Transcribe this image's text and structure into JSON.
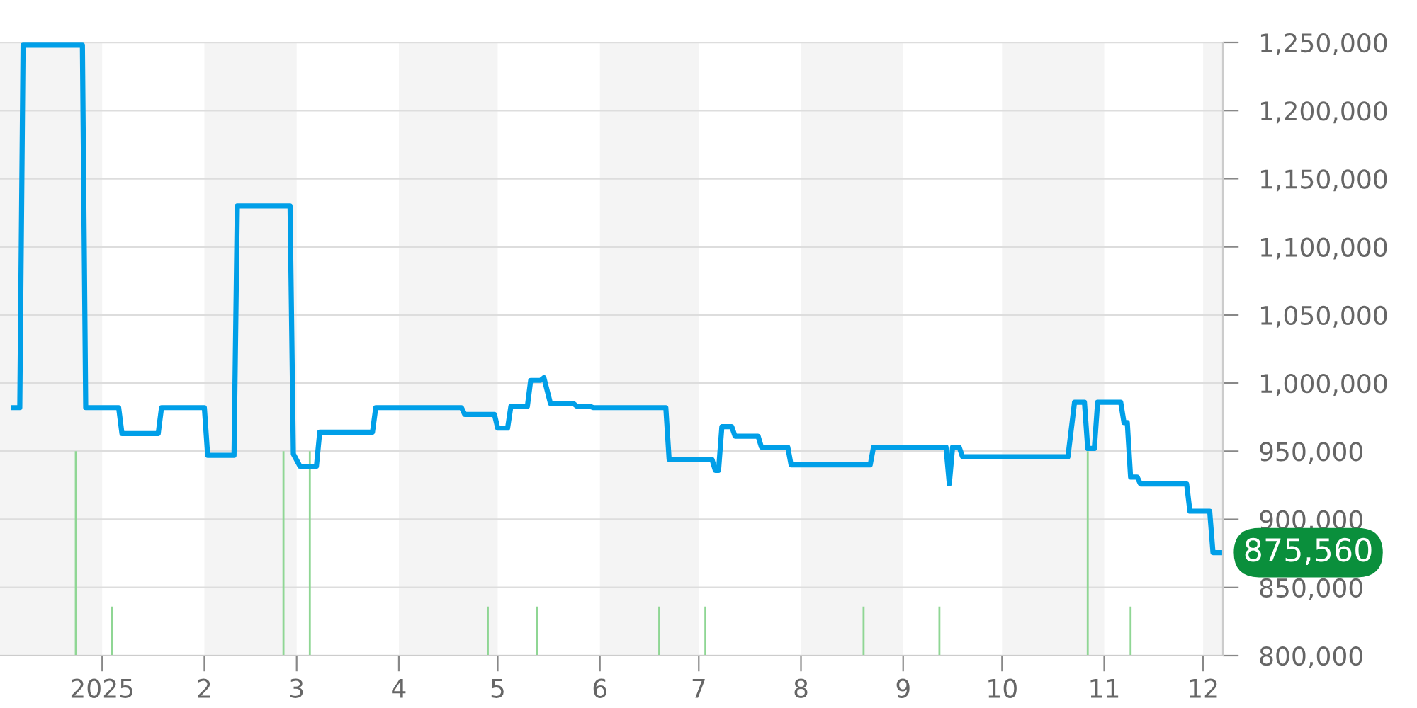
{
  "chart_data": {
    "type": "line",
    "series": [
      {
        "color": "#009fe8",
        "x": [
          "2024-12-05",
          "2024-12-07",
          "2024-12-08",
          "2024-12-26",
          "2024-12-27",
          "2025-01-06",
          "2025-01-07",
          "2025-01-18",
          "2025-01-19",
          "2025-02-01",
          "2025-02-02",
          "2025-02-10",
          "2025-02-11",
          "2025-02-27",
          "2025-02-28",
          "2025-03-02",
          "2025-03-07",
          "2025-03-08",
          "2025-03-24",
          "2025-03-25",
          "2025-04-20",
          "2025-04-21",
          "2025-04-30",
          "2025-05-01",
          "2025-05-04",
          "2025-05-05",
          "2025-05-10",
          "2025-05-11",
          "2025-05-14",
          "2025-05-15",
          "2025-05-17",
          "2025-05-24",
          "2025-05-25",
          "2025-05-29",
          "2025-05-30",
          "2025-06-21",
          "2025-06-22",
          "2025-07-05",
          "2025-07-06",
          "2025-07-07",
          "2025-07-08",
          "2025-07-11",
          "2025-07-12",
          "2025-07-19",
          "2025-07-20",
          "2025-07-28",
          "2025-07-29",
          "2025-08-22",
          "2025-08-23",
          "2025-09-14",
          "2025-09-15",
          "2025-09-16",
          "2025-09-18",
          "2025-09-19",
          "2025-10-21",
          "2025-10-23",
          "2025-10-26",
          "2025-10-27",
          "2025-10-29",
          "2025-10-30",
          "2025-11-06",
          "2025-11-07",
          "2025-11-08",
          "2025-11-09",
          "2025-11-11",
          "2025-11-12",
          "2025-11-26",
          "2025-11-27",
          "2025-12-03",
          "2025-12-04",
          "2025-12-06"
        ],
        "values": [
          982000,
          982000,
          1248000,
          1248000,
          982000,
          982000,
          963000,
          963000,
          982000,
          982000,
          947000,
          947000,
          1130000,
          1130000,
          948000,
          939000,
          939000,
          964000,
          964000,
          982000,
          982000,
          977000,
          977000,
          967000,
          967000,
          983000,
          983000,
          1002000,
          1002000,
          1004000,
          985000,
          985000,
          983000,
          983000,
          982000,
          982000,
          944000,
          944000,
          936000,
          936000,
          968000,
          968000,
          961000,
          961000,
          953000,
          953000,
          940000,
          940000,
          953000,
          953000,
          926000,
          953000,
          953000,
          946000,
          946000,
          986000,
          986000,
          952000,
          952000,
          986000,
          986000,
          971000,
          971000,
          931000,
          931000,
          926000,
          926000,
          906000,
          906000,
          875560,
          875560
        ]
      },
      {
        "type": "bar",
        "color": "#8fd694",
        "x": [
          "2024-12-24",
          "2025-01-04",
          "2025-02-25",
          "2025-03-05",
          "2025-04-28",
          "2025-05-13",
          "2025-06-19",
          "2025-07-03",
          "2025-08-20",
          "2025-09-12",
          "2025-10-27",
          "2025-11-09"
        ],
        "values": [
          950000,
          836000,
          950000,
          950000,
          836000,
          836000,
          836000,
          836000,
          836000,
          836000,
          950000,
          836000
        ]
      }
    ],
    "xlim": [
      "2024-12-01",
      "2025-12-07"
    ],
    "xticks": [
      {
        "value": "2025-01-01",
        "label": "2025"
      },
      {
        "value": "2025-02-01",
        "label": "2"
      },
      {
        "value": "2025-03-01",
        "label": "3"
      },
      {
        "value": "2025-04-01",
        "label": "4"
      },
      {
        "value": "2025-05-01",
        "label": "5"
      },
      {
        "value": "2025-06-01",
        "label": "6"
      },
      {
        "value": "2025-07-01",
        "label": "7"
      },
      {
        "value": "2025-08-01",
        "label": "8"
      },
      {
        "value": "2025-09-01",
        "label": "9"
      },
      {
        "value": "2025-10-01",
        "label": "10"
      },
      {
        "value": "2025-11-01",
        "label": "11"
      },
      {
        "value": "2025-12-01",
        "label": "12"
      }
    ],
    "ylim": [
      800000,
      1250000
    ],
    "yticks": [
      {
        "value": 800000,
        "label": "800,000"
      },
      {
        "value": 850000,
        "label": "850,000"
      },
      {
        "value": 900000,
        "label": "900,000"
      },
      {
        "value": 950000,
        "label": "950,000"
      },
      {
        "value": 1000000,
        "label": "1,000,000"
      },
      {
        "value": 1050000,
        "label": "1,050,000"
      },
      {
        "value": 1100000,
        "label": "1,100,000"
      },
      {
        "value": 1150000,
        "label": "1,150,000"
      },
      {
        "value": 1200000,
        "label": "1,200,000"
      },
      {
        "value": 1250000,
        "label": "1,250,000"
      }
    ],
    "bands": [
      {
        "axis": "x",
        "from": "2024-12-01",
        "to": "2025-01-01",
        "color": "#f4f4f4"
      },
      {
        "axis": "x",
        "from": "2025-02-01",
        "to": "2025-03-01",
        "color": "#f4f4f4"
      },
      {
        "axis": "x",
        "from": "2025-04-01",
        "to": "2025-05-01",
        "color": "#f4f4f4"
      },
      {
        "axis": "x",
        "from": "2025-06-01",
        "to": "2025-07-01",
        "color": "#f4f4f4"
      },
      {
        "axis": "x",
        "from": "2025-08-01",
        "to": "2025-09-01",
        "color": "#f4f4f4"
      },
      {
        "axis": "x",
        "from": "2025-10-01",
        "to": "2025-11-01",
        "color": "#f4f4f4"
      },
      {
        "axis": "x",
        "from": "2025-12-01",
        "to": "2025-12-07",
        "color": "#f4f4f4"
      }
    ],
    "annotations": [
      {
        "text": "875,560",
        "x": "2025-12-06",
        "y": 875560
      }
    ],
    "grid": "y",
    "marker": "none",
    "line_style": "solid"
  }
}
